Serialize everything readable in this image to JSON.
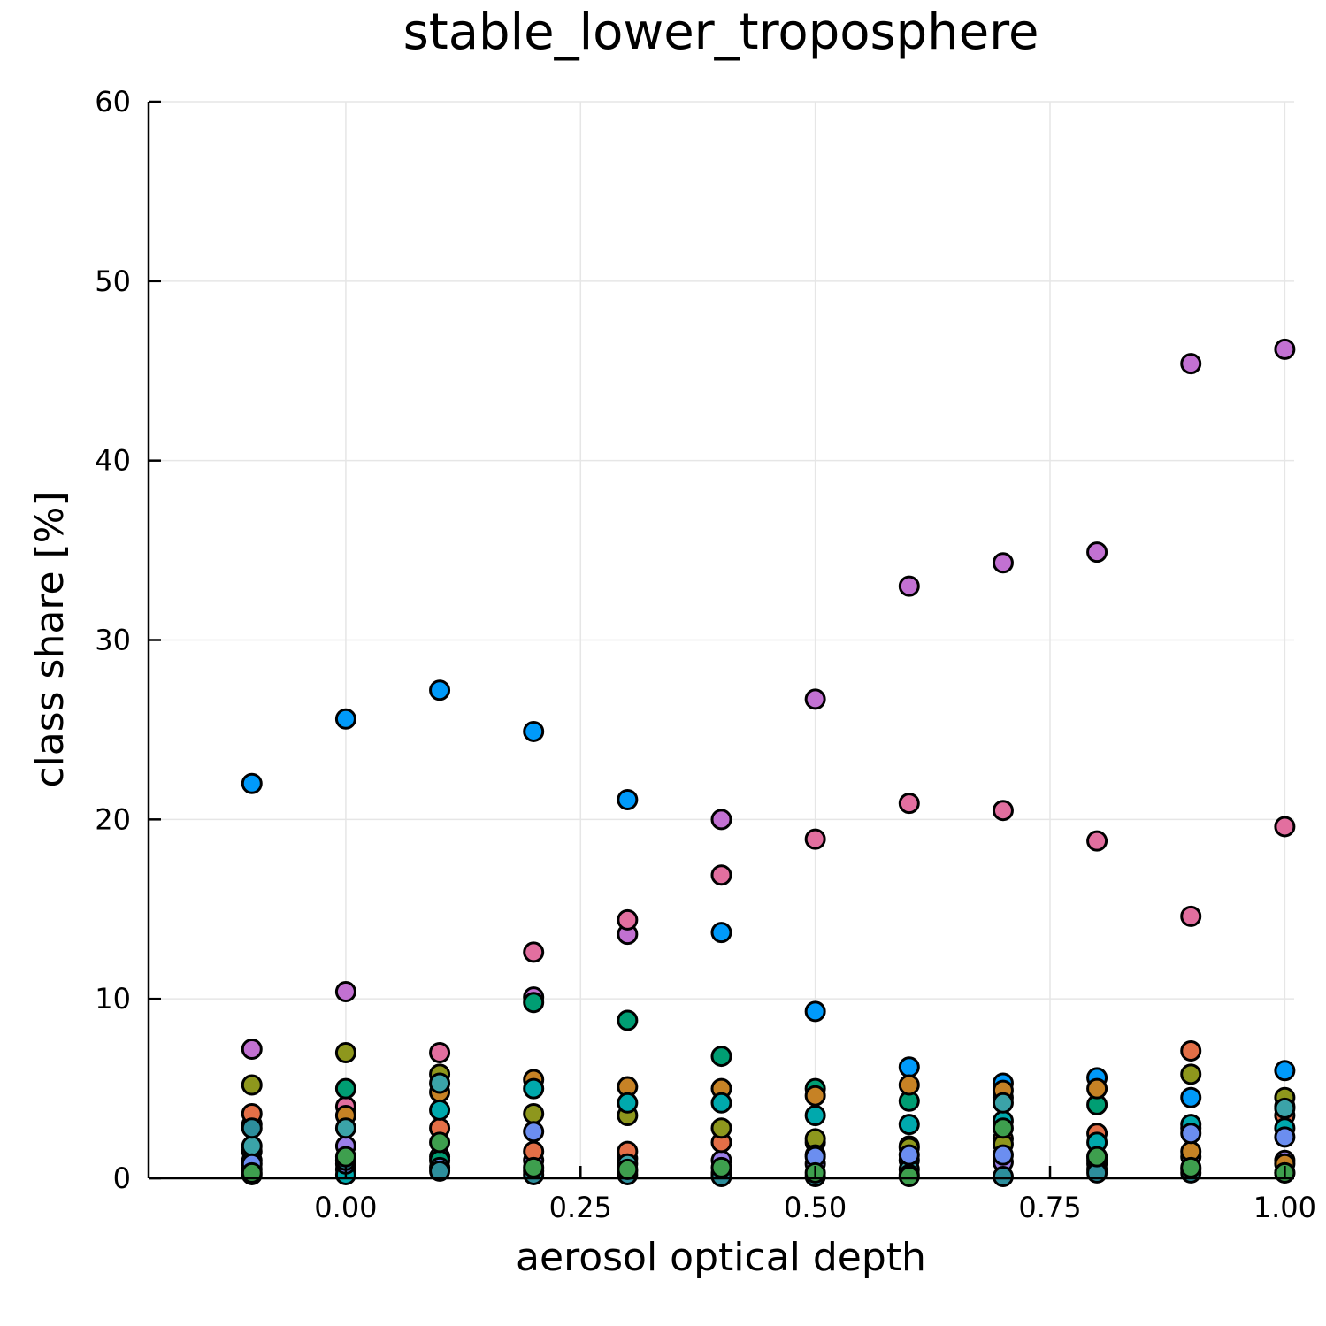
{
  "chart_data": {
    "type": "scatter",
    "title": "stable_lower_troposphere",
    "xlabel": "aerosol optical depth",
    "ylabel": "class share [%]",
    "xlim": [
      -0.21,
      1.01
    ],
    "ylim": [
      0,
      60
    ],
    "xticks": [
      0.0,
      0.25,
      0.5,
      0.75,
      1.0
    ],
    "xtick_labels": [
      "0.00",
      "0.25",
      "0.50",
      "0.75",
      "1.00"
    ],
    "yticks": [
      0,
      10,
      20,
      30,
      40,
      50,
      60
    ],
    "ytick_labels": [
      "0",
      "10",
      "20",
      "30",
      "40",
      "50",
      "60"
    ],
    "grid": true,
    "legend": "none",
    "series": [
      {
        "color": "#009AFA",
        "points": [
          [
            -0.1,
            22.0
          ],
          [
            0.0,
            25.6
          ],
          [
            0.1,
            27.2
          ],
          [
            0.2,
            24.9
          ],
          [
            0.3,
            21.1
          ],
          [
            0.4,
            13.7
          ],
          [
            0.5,
            9.3
          ],
          [
            0.6,
            6.2
          ],
          [
            0.7,
            5.3
          ],
          [
            0.8,
            5.6
          ],
          [
            0.9,
            4.5
          ],
          [
            1.0,
            6.0
          ]
        ]
      },
      {
        "color": "#C271D2",
        "points": [
          [
            -0.1,
            7.2
          ],
          [
            0.0,
            10.4
          ],
          [
            0.2,
            10.1
          ],
          [
            0.3,
            13.6
          ],
          [
            0.4,
            20.0
          ],
          [
            0.5,
            26.7
          ],
          [
            0.6,
            33.0
          ],
          [
            0.7,
            34.3
          ],
          [
            0.8,
            34.9
          ],
          [
            0.9,
            45.4
          ],
          [
            1.0,
            46.2
          ]
        ]
      },
      {
        "color": "#E26F9F",
        "points": [
          [
            -0.1,
            3.0
          ],
          [
            0.0,
            4.0
          ],
          [
            0.1,
            7.0
          ],
          [
            0.2,
            12.6
          ],
          [
            0.3,
            14.4
          ],
          [
            0.4,
            16.9
          ],
          [
            0.5,
            18.9
          ],
          [
            0.6,
            20.9
          ],
          [
            0.7,
            20.5
          ],
          [
            0.8,
            18.8
          ],
          [
            0.9,
            14.6
          ],
          [
            1.0,
            19.6
          ]
        ]
      },
      {
        "color": "#9B7FE8",
        "points": [
          [
            -0.1,
            1.5
          ],
          [
            0.0,
            1.8
          ],
          [
            0.1,
            1.2
          ],
          [
            0.2,
            1.0
          ],
          [
            0.3,
            1.1
          ],
          [
            0.4,
            1.0
          ],
          [
            0.5,
            0.8
          ],
          [
            0.6,
            1.0
          ],
          [
            0.7,
            0.9
          ],
          [
            0.8,
            1.0
          ],
          [
            0.9,
            1.2
          ],
          [
            1.0,
            1.0
          ]
        ]
      },
      {
        "color": "#009E73",
        "points": [
          [
            -0.1,
            1.0
          ],
          [
            0.0,
            5.0
          ],
          [
            0.1,
            1.0
          ],
          [
            0.2,
            9.8
          ],
          [
            0.3,
            8.8
          ],
          [
            0.4,
            6.8
          ],
          [
            0.5,
            5.0
          ],
          [
            0.6,
            4.3
          ],
          [
            0.7,
            4.5
          ],
          [
            0.8,
            4.1
          ],
          [
            0.9,
            2.8
          ],
          [
            1.0,
            4.0
          ]
        ]
      },
      {
        "color": "#E36F47",
        "points": [
          [
            -0.1,
            3.6
          ],
          [
            0.0,
            0.5
          ],
          [
            0.1,
            2.8
          ],
          [
            0.2,
            1.5
          ],
          [
            0.3,
            1.5
          ],
          [
            0.4,
            2.0
          ],
          [
            0.5,
            2.0
          ],
          [
            0.6,
            1.8
          ],
          [
            0.7,
            2.2
          ],
          [
            0.8,
            2.5
          ],
          [
            0.9,
            7.1
          ],
          [
            1.0,
            3.5
          ]
        ]
      },
      {
        "color": "#C68225",
        "points": [
          [
            -0.1,
            0.5
          ],
          [
            0.0,
            3.5
          ],
          [
            0.1,
            4.8
          ],
          [
            0.2,
            5.5
          ],
          [
            0.3,
            5.1
          ],
          [
            0.4,
            5.0
          ],
          [
            0.5,
            4.6
          ],
          [
            0.6,
            5.2
          ],
          [
            0.7,
            4.9
          ],
          [
            0.8,
            5.0
          ],
          [
            0.9,
            1.5
          ],
          [
            1.0,
            0.8
          ]
        ]
      },
      {
        "color": "#8E971D",
        "points": [
          [
            -0.1,
            5.2
          ],
          [
            0.0,
            7.0
          ],
          [
            0.1,
            5.8
          ],
          [
            0.2,
            3.6
          ],
          [
            0.3,
            3.5
          ],
          [
            0.4,
            2.8
          ],
          [
            0.5,
            2.2
          ],
          [
            0.6,
            1.7
          ],
          [
            0.7,
            1.9
          ],
          [
            0.8,
            1.2
          ],
          [
            0.9,
            5.8
          ],
          [
            1.0,
            4.5
          ]
        ]
      },
      {
        "color": "#00A9AD",
        "points": [
          [
            -0.1,
            0.2
          ],
          [
            0.0,
            0.2
          ],
          [
            0.1,
            3.8
          ],
          [
            0.2,
            5.0
          ],
          [
            0.3,
            4.2
          ],
          [
            0.4,
            4.2
          ],
          [
            0.5,
            3.5
          ],
          [
            0.6,
            3.0
          ],
          [
            0.7,
            3.2
          ],
          [
            0.8,
            2.0
          ],
          [
            0.9,
            3.0
          ],
          [
            1.0,
            2.8
          ]
        ]
      },
      {
        "color": "#3BA3A8",
        "points": [
          [
            -0.1,
            1.8
          ],
          [
            0.0,
            2.8
          ],
          [
            0.1,
            5.3
          ],
          [
            0.2,
            0.4
          ],
          [
            0.3,
            0.8
          ],
          [
            0.4,
            0.3
          ],
          [
            0.5,
            1.3
          ],
          [
            0.6,
            0.5
          ],
          [
            0.7,
            4.2
          ],
          [
            0.8,
            0.8
          ],
          [
            0.9,
            0.5
          ],
          [
            1.0,
            3.9
          ]
        ]
      },
      {
        "color": "#6B8EF0",
        "points": [
          [
            -0.1,
            0.8
          ],
          [
            0.0,
            0.8
          ],
          [
            0.1,
            0.6
          ],
          [
            0.2,
            2.6
          ],
          [
            0.3,
            0.4
          ],
          [
            0.4,
            0.2
          ],
          [
            0.5,
            1.2
          ],
          [
            0.6,
            1.3
          ],
          [
            0.7,
            1.3
          ],
          [
            0.8,
            0.5
          ],
          [
            0.9,
            2.5
          ],
          [
            1.0,
            2.3
          ]
        ]
      },
      {
        "color": "#2D8E9C",
        "points": [
          [
            -0.1,
            2.8
          ],
          [
            0.0,
            1.0
          ],
          [
            0.1,
            0.4
          ],
          [
            0.2,
            0.2
          ],
          [
            0.3,
            0.2
          ],
          [
            0.4,
            0.1
          ],
          [
            0.5,
            0.1
          ],
          [
            0.6,
            0.2
          ],
          [
            0.7,
            0.1
          ],
          [
            0.8,
            0.3
          ],
          [
            0.9,
            0.3
          ],
          [
            1.0,
            0.3
          ]
        ]
      },
      {
        "color": "#3E9F4E",
        "points": [
          [
            -0.1,
            0.3
          ],
          [
            0.0,
            1.2
          ],
          [
            0.1,
            2.0
          ],
          [
            0.2,
            0.6
          ],
          [
            0.3,
            0.5
          ],
          [
            0.4,
            0.6
          ],
          [
            0.5,
            0.3
          ],
          [
            0.6,
            0.1
          ],
          [
            0.7,
            2.8
          ],
          [
            0.8,
            1.2
          ],
          [
            0.9,
            0.6
          ],
          [
            1.0,
            0.3
          ]
        ]
      }
    ]
  }
}
